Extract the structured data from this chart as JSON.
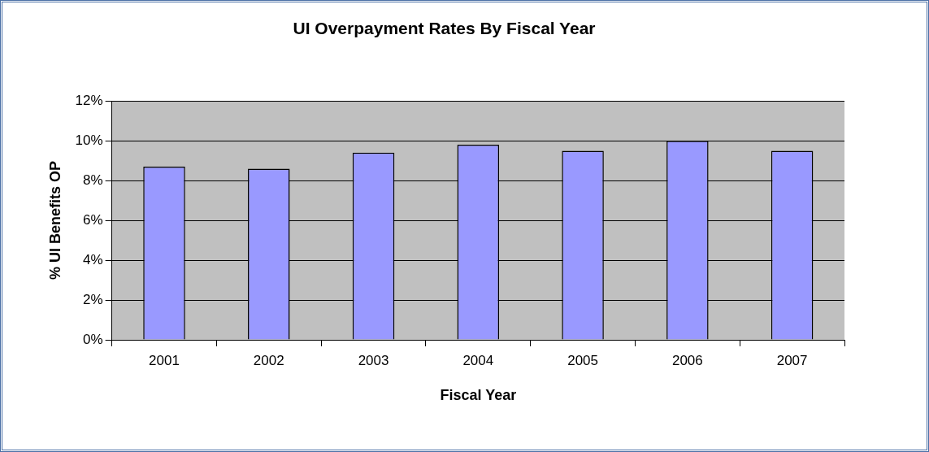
{
  "chart_data": {
    "type": "bar",
    "title": "UI Overpayment Rates By Fiscal Year",
    "xlabel": "Fiscal Year",
    "ylabel": "% UI Benefits OP",
    "categories": [
      "2001",
      "2002",
      "2003",
      "2004",
      "2005",
      "2006",
      "2007"
    ],
    "values": [
      8.7,
      8.6,
      9.4,
      9.8,
      9.5,
      10.0,
      9.5
    ],
    "color": "#9999ff",
    "ylim": [
      0,
      12
    ],
    "yticks": [
      {
        "value": 0,
        "label": "0%"
      },
      {
        "value": 2,
        "label": "2%"
      },
      {
        "value": 4,
        "label": "4%"
      },
      {
        "value": 6,
        "label": "6%"
      },
      {
        "value": 8,
        "label": "8%"
      },
      {
        "value": 10,
        "label": "10%"
      },
      {
        "value": 12,
        "label": "12%"
      }
    ],
    "grid": "y",
    "legend": false
  }
}
